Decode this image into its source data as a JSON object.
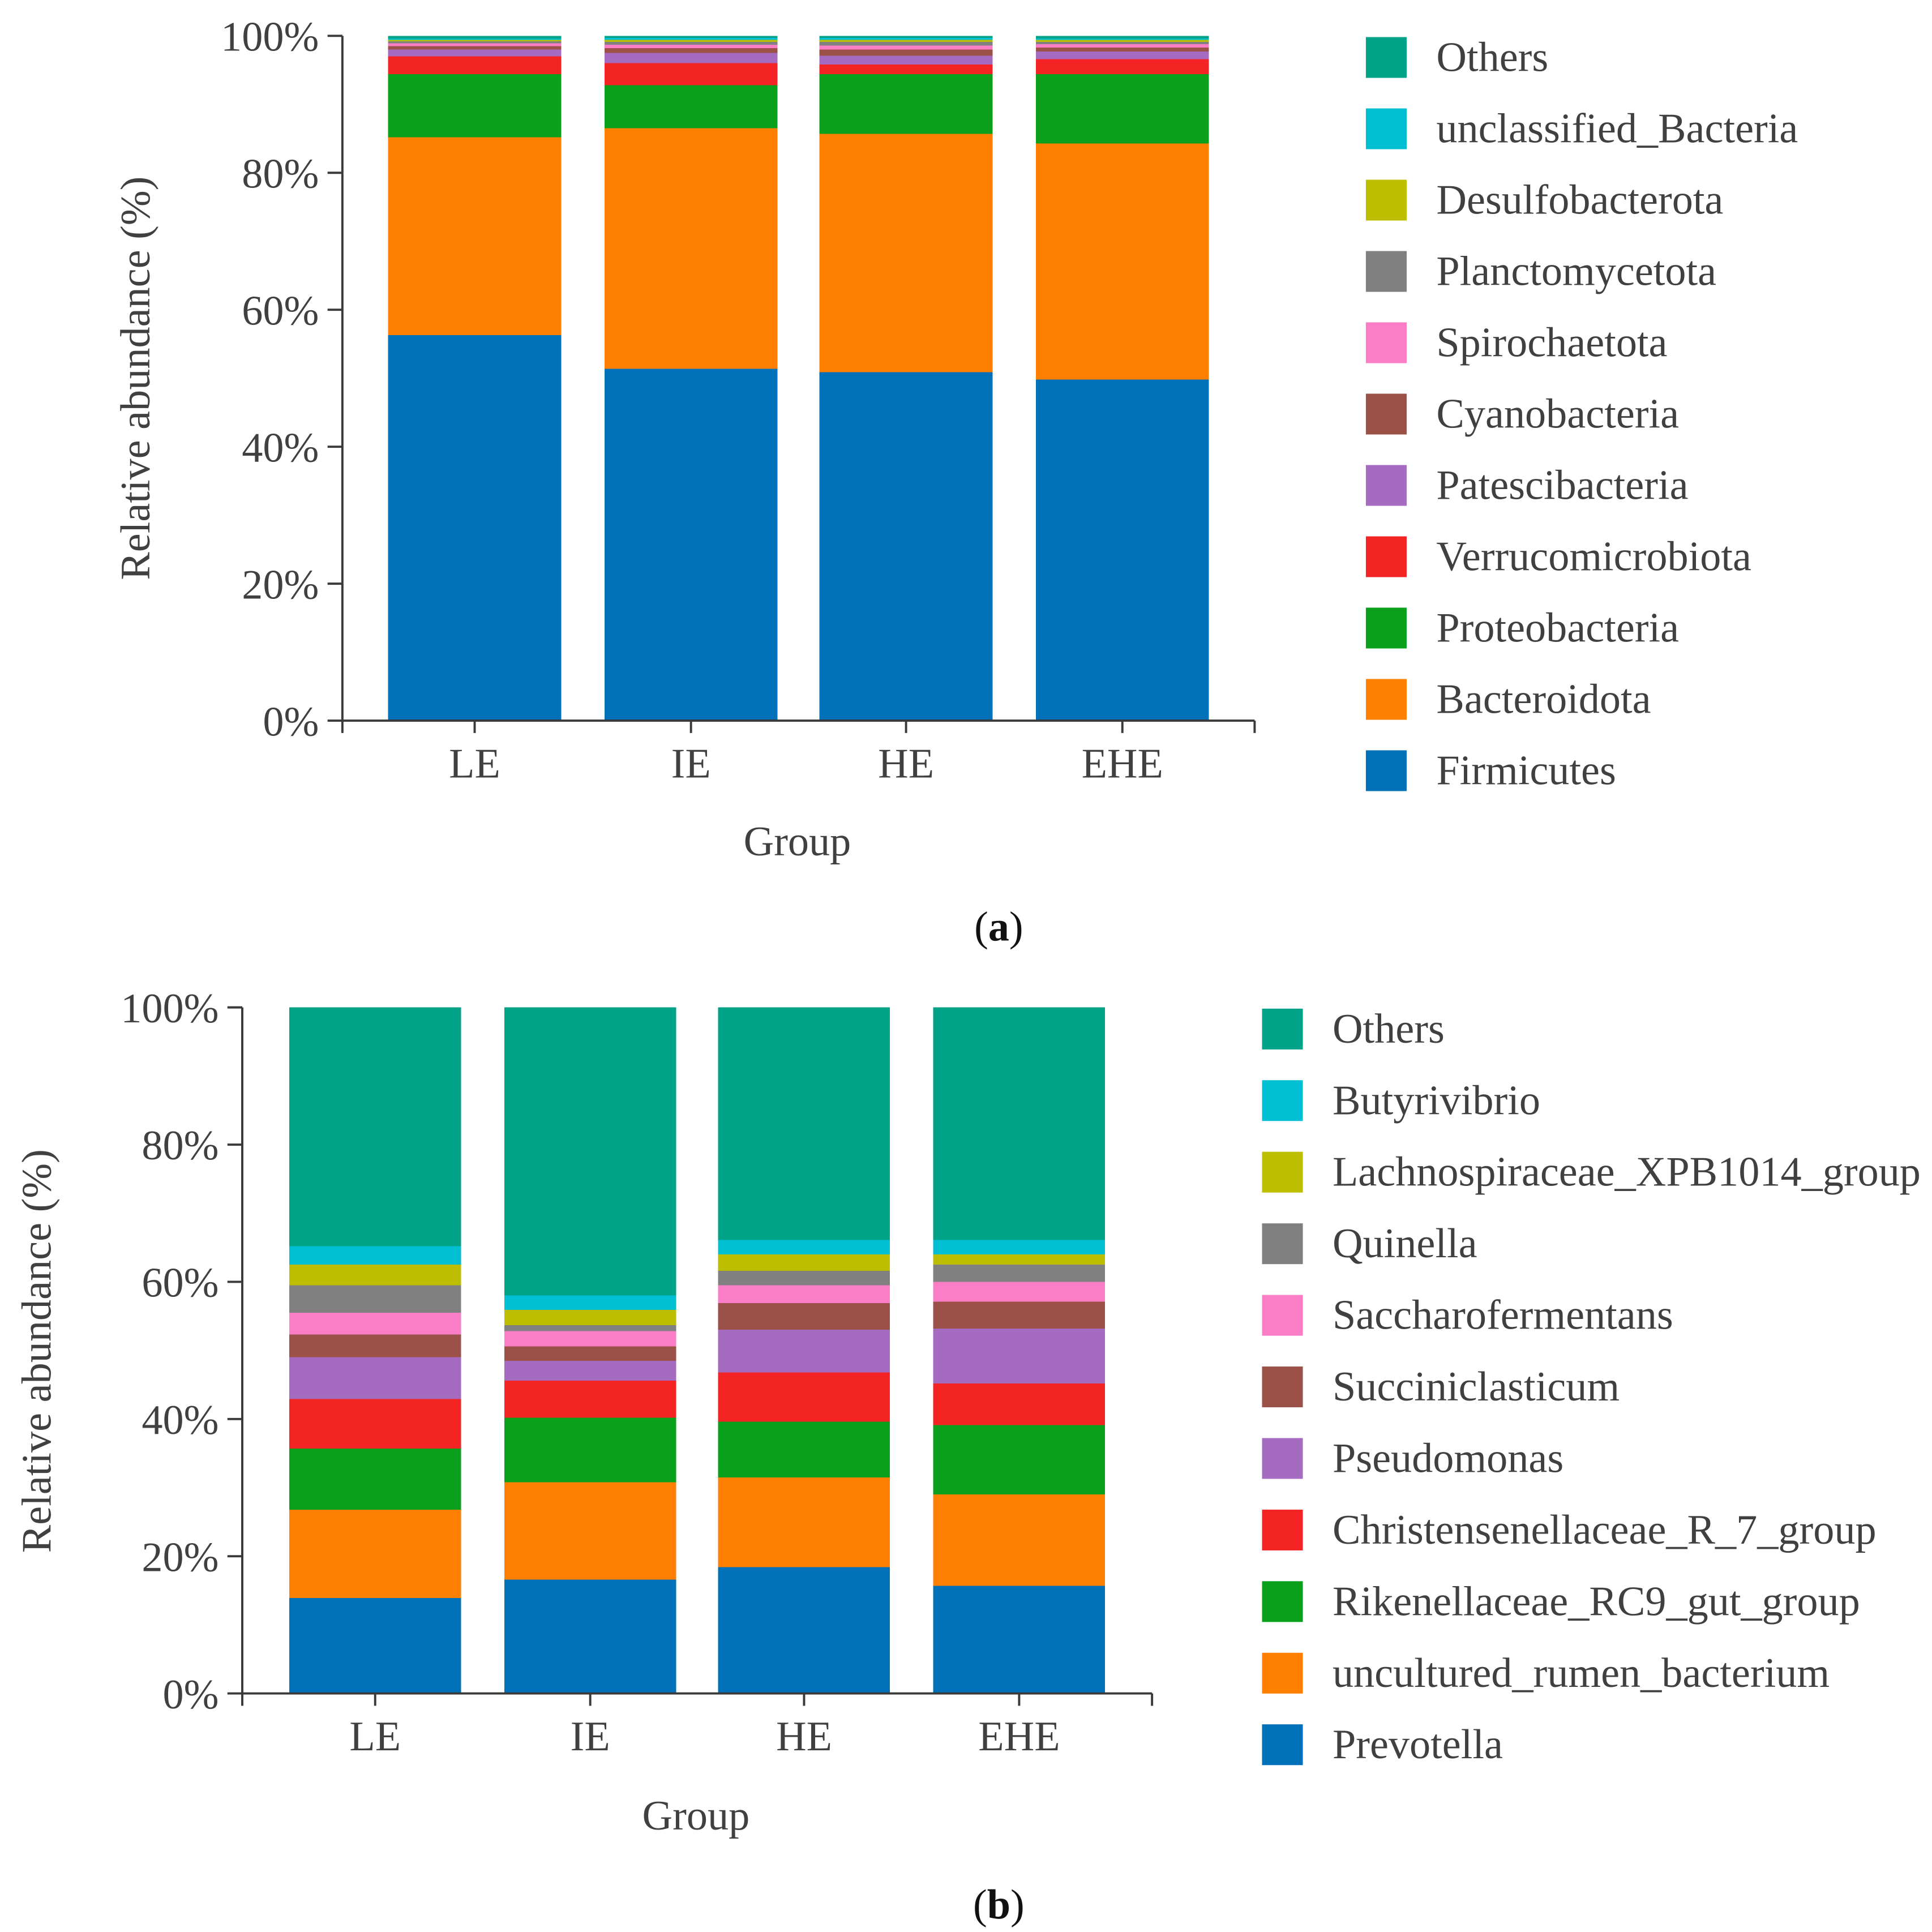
{
  "chart_data": [
    {
      "type": "bar",
      "stacked": true,
      "panel_label": {
        "open": "(",
        "letter": "a",
        "close": ")"
      },
      "title": "",
      "xlabel": "Group",
      "ylabel": "Relative abundance (%)",
      "ylim": [
        0,
        100
      ],
      "yticks": [
        0,
        20,
        40,
        60,
        80,
        100
      ],
      "ytick_labels": [
        "0%",
        "20%",
        "40%",
        "60%",
        "80%",
        "100%"
      ],
      "grid": false,
      "legend": "right",
      "categories": [
        "LE",
        "IE",
        "HE",
        "EHE"
      ],
      "series": [
        {
          "name": "Firmicutes",
          "color": "#0070b8",
          "values": [
            56.3,
            51.4,
            50.9,
            49.8
          ]
        },
        {
          "name": "Bacteroidota",
          "color": "#ff7f00",
          "values": [
            28.9,
            35.1,
            34.8,
            34.5
          ]
        },
        {
          "name": "Proteobacteria",
          "color": "#0aa01c",
          "values": [
            9.2,
            6.3,
            8.7,
            10.1
          ]
        },
        {
          "name": "Verrucomicrobiota",
          "color": "#f42424",
          "values": [
            2.6,
            3.2,
            1.4,
            2.2
          ]
        },
        {
          "name": "Patescibacteria",
          "color": "#a56bc1",
          "values": [
            1.0,
            1.5,
            1.3,
            1.1
          ]
        },
        {
          "name": "Cyanobacteria",
          "color": "#9c5148",
          "values": [
            0.5,
            0.7,
            0.9,
            0.6
          ]
        },
        {
          "name": "Spirochaetota",
          "color": "#fa7dc6",
          "values": [
            0.4,
            0.5,
            0.6,
            0.5
          ]
        },
        {
          "name": "Planctomycetota",
          "color": "#808080",
          "values": [
            0.3,
            0.4,
            0.5,
            0.3
          ]
        },
        {
          "name": "Desulfobacterota",
          "color": "#bebe00",
          "values": [
            0.2,
            0.3,
            0.3,
            0.3
          ]
        },
        {
          "name": "unclassified_Bacteria",
          "color": "#00bfd3",
          "values": [
            0.2,
            0.3,
            0.3,
            0.2
          ]
        },
        {
          "name": "Others",
          "color": "#00a288",
          "values": [
            0.4,
            0.3,
            0.3,
            0.4
          ]
        }
      ]
    },
    {
      "type": "bar",
      "stacked": true,
      "panel_label": {
        "open": "(",
        "letter": "b",
        "close": ")"
      },
      "title": "",
      "xlabel": "Group",
      "ylabel": "Relative abundance (%)",
      "ylim": [
        0,
        100
      ],
      "yticks": [
        0,
        20,
        40,
        60,
        80,
        100
      ],
      "ytick_labels": [
        "0%",
        "20%",
        "40%",
        "60%",
        "80%",
        "100%"
      ],
      "grid": false,
      "legend": "right",
      "categories": [
        "LE",
        "IE",
        "HE",
        "EHE"
      ],
      "series": [
        {
          "name": "Prevotella",
          "color": "#0070b8",
          "values": [
            13.9,
            16.6,
            18.4,
            15.7
          ]
        },
        {
          "name": "uncultured_rumen_bacterium",
          "color": "#ff7f00",
          "values": [
            12.9,
            14.2,
            13.1,
            13.3
          ]
        },
        {
          "name": "Rikenellaceae_RC9_gut_group",
          "color": "#0aa01c",
          "values": [
            8.9,
            9.4,
            8.1,
            10.1
          ]
        },
        {
          "name": "Christensenellaceae_R_7_group",
          "color": "#f42424",
          "values": [
            7.2,
            5.4,
            7.2,
            6.1
          ]
        },
        {
          "name": "Pseudomonas",
          "color": "#a56bc1",
          "values": [
            6.1,
            2.9,
            6.2,
            8.0
          ]
        },
        {
          "name": "Succiniclasticum",
          "color": "#9c5148",
          "values": [
            3.3,
            2.1,
            3.9,
            3.9
          ]
        },
        {
          "name": "Saccharofermentans",
          "color": "#fa7dc6",
          "values": [
            3.2,
            2.2,
            2.6,
            2.9
          ]
        },
        {
          "name": "Quinella",
          "color": "#808080",
          "values": [
            4.0,
            0.9,
            2.1,
            2.5
          ]
        },
        {
          "name": "Lachnospiraceae_XPB1014_group",
          "color": "#bebe00",
          "values": [
            3.0,
            2.2,
            2.4,
            1.5
          ]
        },
        {
          "name": "Butyrivibrio",
          "color": "#00bfd3",
          "values": [
            2.7,
            2.1,
            2.1,
            2.1
          ]
        },
        {
          "name": "Others",
          "color": "#00a288",
          "values": [
            34.8,
            42.0,
            33.9,
            33.9
          ]
        }
      ]
    }
  ]
}
